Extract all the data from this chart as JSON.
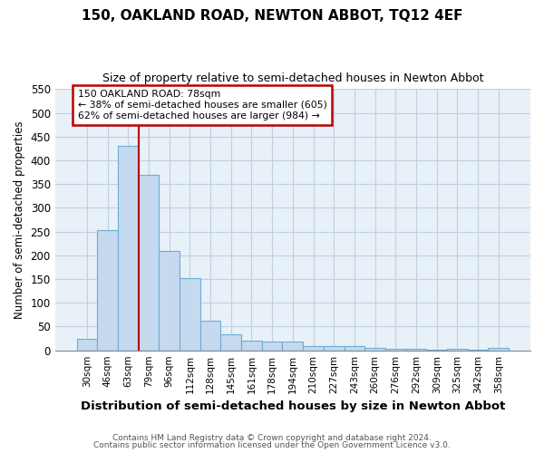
{
  "title": "150, OAKLAND ROAD, NEWTON ABBOT, TQ12 4EF",
  "subtitle": "Size of property relative to semi-detached houses in Newton Abbot",
  "xlabel": "Distribution of semi-detached houses by size in Newton Abbot",
  "ylabel": "Number of semi-detached properties",
  "categories": [
    "30sqm",
    "46sqm",
    "63sqm",
    "79sqm",
    "96sqm",
    "112sqm",
    "128sqm",
    "145sqm",
    "161sqm",
    "178sqm",
    "194sqm",
    "210sqm",
    "227sqm",
    "243sqm",
    "260sqm",
    "276sqm",
    "292sqm",
    "309sqm",
    "325sqm",
    "342sqm",
    "358sqm"
  ],
  "values": [
    25,
    253,
    430,
    370,
    210,
    152,
    63,
    33,
    21,
    18,
    18,
    9,
    8,
    9,
    5,
    4,
    4,
    1,
    3,
    1,
    6
  ],
  "bar_color": "#c5d9ef",
  "bar_edge_color": "#6baed6",
  "grid_color": "#c0d0e0",
  "background_color": "#e8f0f8",
  "property_line_color": "#bb0000",
  "annotation_text": "150 OAKLAND ROAD: 78sqm\n← 38% of semi-detached houses are smaller (605)\n62% of semi-detached houses are larger (984) →",
  "annotation_box_color": "white",
  "annotation_box_edge": "#bb0000",
  "ylim": [
    0,
    550
  ],
  "yticks": [
    0,
    50,
    100,
    150,
    200,
    250,
    300,
    350,
    400,
    450,
    500,
    550
  ],
  "footer1": "Contains HM Land Registry data © Crown copyright and database right 2024.",
  "footer2": "Contains public sector information licensed under the Open Government Licence v3.0.",
  "bar_width": 1.0,
  "title_fontsize": 11,
  "subtitle_fontsize": 9
}
